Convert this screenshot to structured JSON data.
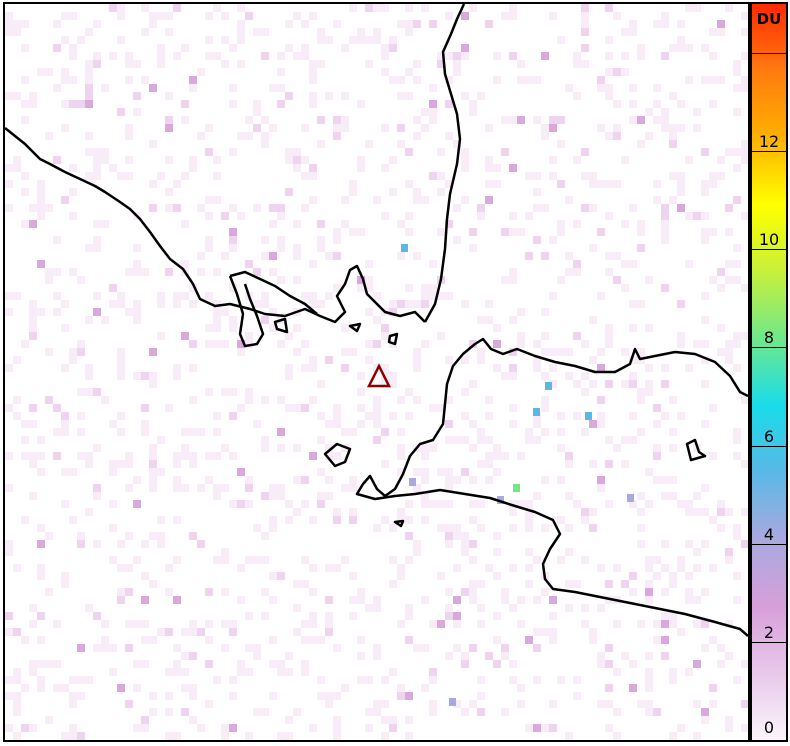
{
  "colorbar": {
    "unit": "DU",
    "min": 0,
    "max": 15,
    "ticks": [
      {
        "value": 0,
        "label": "0"
      },
      {
        "value": 2,
        "label": "2"
      },
      {
        "value": 4,
        "label": "4"
      },
      {
        "value": 6,
        "label": "6"
      },
      {
        "value": 8,
        "label": "8"
      },
      {
        "value": 10,
        "label": "10"
      },
      {
        "value": 12,
        "label": "12"
      },
      {
        "value": 14,
        "label": ""
      }
    ],
    "colors": [
      "#fbf5fb",
      "#e8c8ea",
      "#d79fd9",
      "#a9a9e0",
      "#5ab8e6",
      "#19dcea",
      "#6fe88a",
      "#c8f03a",
      "#ffff00",
      "#ffb000",
      "#ff7a10",
      "#ff2a00"
    ]
  },
  "map": {
    "marker": "volcano-triangle-icon",
    "marker_color": "#8b0000",
    "coastline_color": "#000000"
  }
}
